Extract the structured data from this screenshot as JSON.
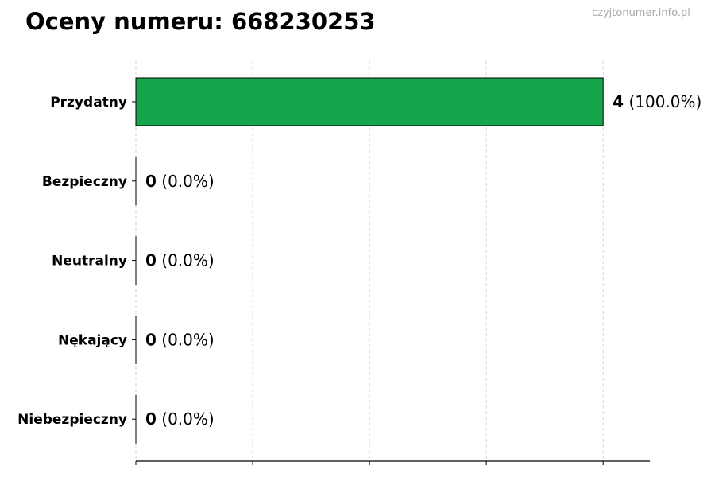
{
  "title": "Oceny numeru: 668230253",
  "watermark": "czyjtonumer.info.pl",
  "chart_data": {
    "type": "bar",
    "orientation": "horizontal",
    "title": "Oceny numeru: 668230253",
    "categories": [
      "Przydatny",
      "Bezpieczny",
      "Neutralny",
      "Nękający",
      "Niebezpieczny"
    ],
    "values": [
      4,
      0,
      0,
      0,
      0
    ],
    "value_labels": [
      "4",
      "0",
      "0",
      "0",
      "0"
    ],
    "percent_labels": [
      "(100.0%)",
      "(0.0%)",
      "(0.0%)",
      "(0.0%)",
      "(0.0%)"
    ],
    "xlim": [
      0,
      4.4
    ],
    "xticks": [
      0,
      1,
      2,
      3,
      4
    ],
    "xtick_labels_shown": false,
    "grid": "vertical dashed",
    "bar_color": "#16a54a",
    "xlabel": "",
    "ylabel": ""
  }
}
